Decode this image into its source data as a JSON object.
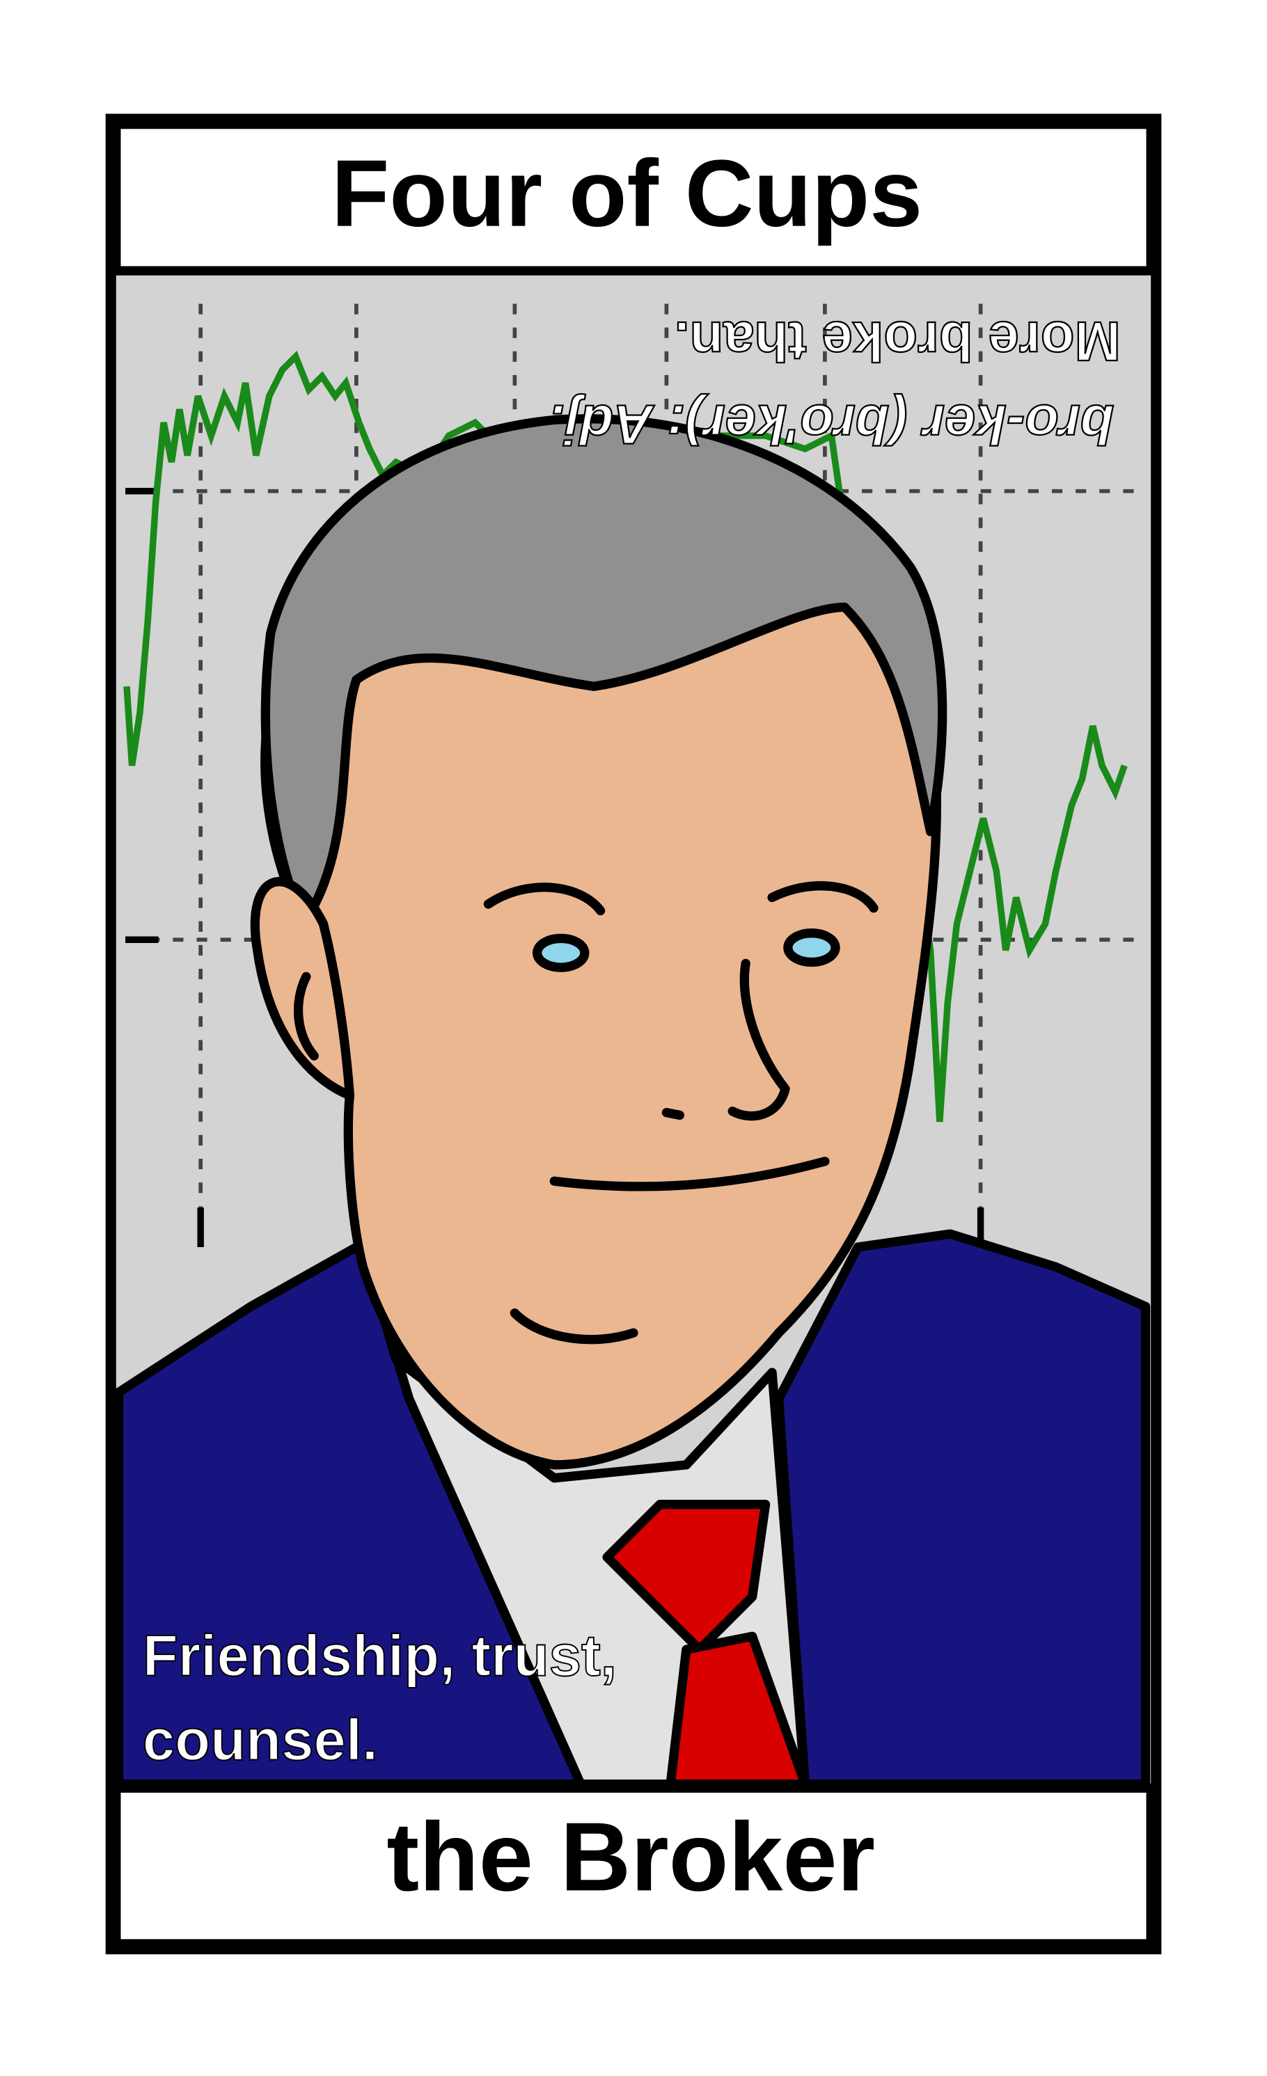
{
  "header": {
    "title": "Four of Cups"
  },
  "definition": {
    "lines": [
      "bro-ker (bro'ker): Adj.",
      "More broke than."
    ]
  },
  "caption": {
    "lines": [
      "Friendship, trust,",
      "counsel."
    ]
  },
  "footer": {
    "title": "the Broker"
  }
}
